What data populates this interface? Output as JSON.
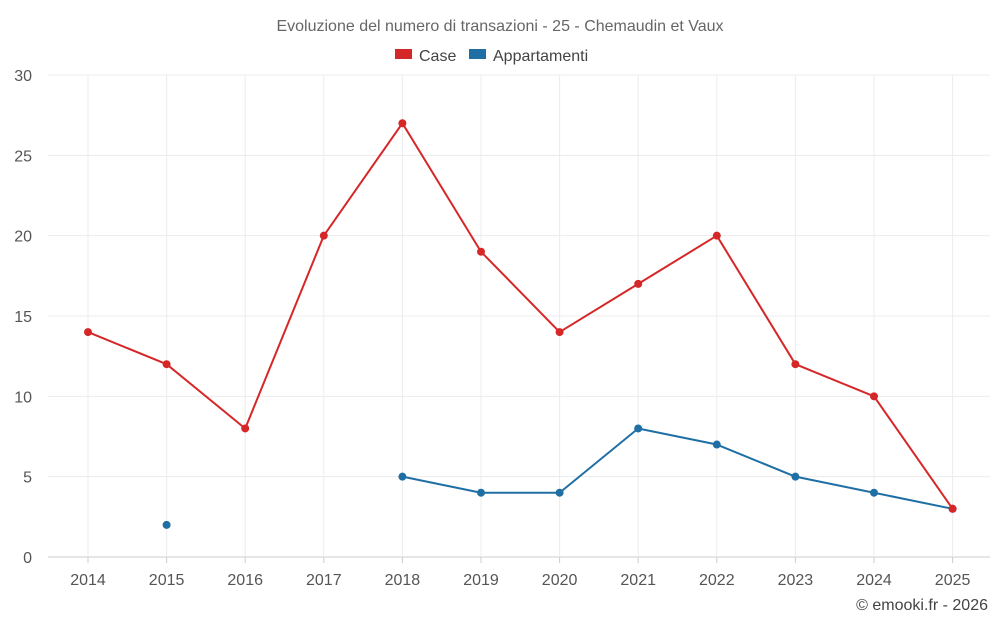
{
  "chart_data": {
    "type": "line",
    "title": "Evoluzione del numero di transazioni - 25 - Chemaudin et Vaux",
    "categories": [
      "2014",
      "2015",
      "2016",
      "2017",
      "2018",
      "2019",
      "2020",
      "2021",
      "2022",
      "2023",
      "2024",
      "2025"
    ],
    "series": [
      {
        "name": "Case",
        "color": "#d62728",
        "values": [
          14,
          12,
          8,
          20,
          27,
          19,
          14,
          17,
          20,
          12,
          10,
          3
        ]
      },
      {
        "name": "Appartamenti",
        "color": "#1f6fa5",
        "values": [
          null,
          2,
          null,
          null,
          5,
          4,
          4,
          8,
          7,
          5,
          4,
          3
        ]
      }
    ],
    "ylim": [
      0,
      30
    ],
    "yticks": [
      0,
      5,
      10,
      15,
      20,
      25,
      30
    ],
    "xlabel": "",
    "ylabel": "",
    "grid": true,
    "legend": "top-center"
  },
  "credit": "© emooki.fr - 2026"
}
